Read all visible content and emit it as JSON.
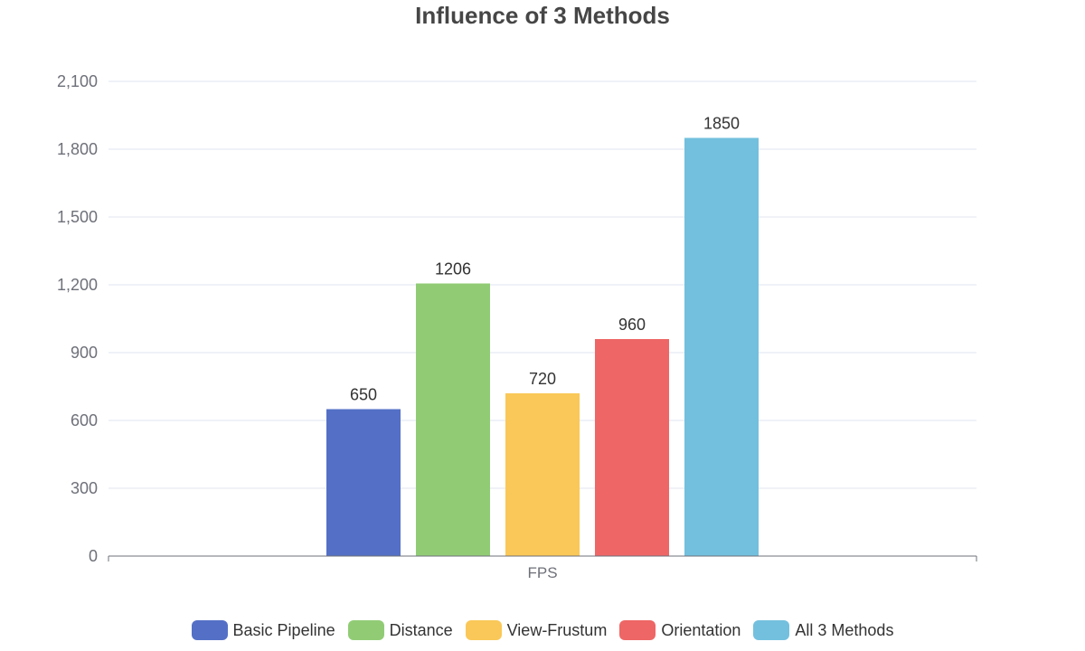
{
  "title": "Influence of 3 Methods",
  "colors": {
    "grid": "#e0e6f1",
    "axis": "#6e7079",
    "tick_text": "#6e7079",
    "label_text": "#333333"
  },
  "chart_data": {
    "type": "bar",
    "title": "Influence of 3 Methods",
    "categories": [
      "FPS"
    ],
    "xlabel": "",
    "ylabel": "",
    "ylim": [
      0,
      2100
    ],
    "yticks": [
      0,
      300,
      600,
      900,
      1200,
      1500,
      1800,
      2100
    ],
    "ytick_labels": [
      "0",
      "300",
      "600",
      "900",
      "1,200",
      "1,500",
      "1,800",
      "2,100"
    ],
    "grid": true,
    "legend_position": "bottom-center",
    "series": [
      {
        "name": "Basic Pipeline",
        "values": [
          650
        ],
        "color": "#5470c6"
      },
      {
        "name": "Distance",
        "values": [
          1206
        ],
        "color": "#91cc75"
      },
      {
        "name": "View-Frustum",
        "values": [
          720
        ],
        "color": "#fac858"
      },
      {
        "name": "Orientation",
        "values": [
          960
        ],
        "color": "#ee6666"
      },
      {
        "name": "All 3 Methods",
        "values": [
          1850
        ],
        "color": "#73c0de"
      }
    ]
  }
}
